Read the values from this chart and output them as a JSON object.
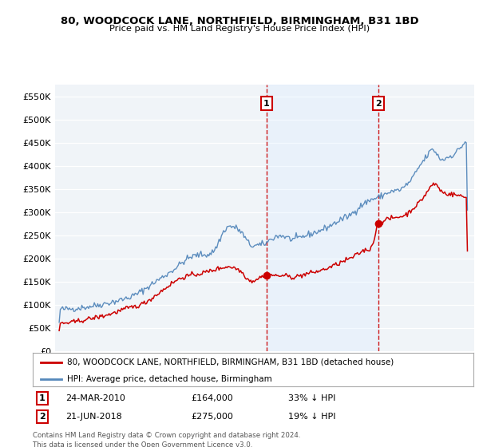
{
  "title": "80, WOODCOCK LANE, NORTHFIELD, BIRMINGHAM, B31 1BD",
  "subtitle": "Price paid vs. HM Land Registry's House Price Index (HPI)",
  "legend_label_red": "80, WOODCOCK LANE, NORTHFIELD, BIRMINGHAM, B31 1BD (detached house)",
  "legend_label_blue": "HPI: Average price, detached house, Birmingham",
  "transaction1_date": "24-MAR-2010",
  "transaction1_price": "£164,000",
  "transaction1_pct": "33% ↓ HPI",
  "transaction1_year": 2010.22,
  "transaction1_value": 164000,
  "transaction2_date": "21-JUN-2018",
  "transaction2_price": "£275,000",
  "transaction2_pct": "19% ↓ HPI",
  "transaction2_year": 2018.47,
  "transaction2_value": 275000,
  "y_ticks": [
    0,
    50000,
    100000,
    150000,
    200000,
    250000,
    300000,
    350000,
    400000,
    450000,
    500000,
    550000
  ],
  "y_tick_labels": [
    "£0",
    "£50K",
    "£100K",
    "£150K",
    "£200K",
    "£250K",
    "£300K",
    "£350K",
    "£400K",
    "£450K",
    "£500K",
    "£550K"
  ],
  "xlim_left": 1994.7,
  "xlim_right": 2025.5,
  "ylim_bottom": 0,
  "ylim_top": 575000,
  "background_color": "#ffffff",
  "plot_bg_color": "#f0f4f8",
  "grid_color": "#ffffff",
  "red_color": "#cc0000",
  "blue_color": "#5588bb",
  "shade_color": "#ddeeff",
  "dashed_color": "#cc0000",
  "footer": "Contains HM Land Registry data © Crown copyright and database right 2024.\nThis data is licensed under the Open Government Licence v3.0.",
  "x_ticks": [
    1995,
    1996,
    1997,
    1998,
    1999,
    2000,
    2001,
    2002,
    2003,
    2004,
    2005,
    2006,
    2007,
    2008,
    2009,
    2010,
    2011,
    2012,
    2013,
    2014,
    2015,
    2016,
    2017,
    2018,
    2019,
    2020,
    2021,
    2022,
    2023,
    2024,
    2025
  ]
}
